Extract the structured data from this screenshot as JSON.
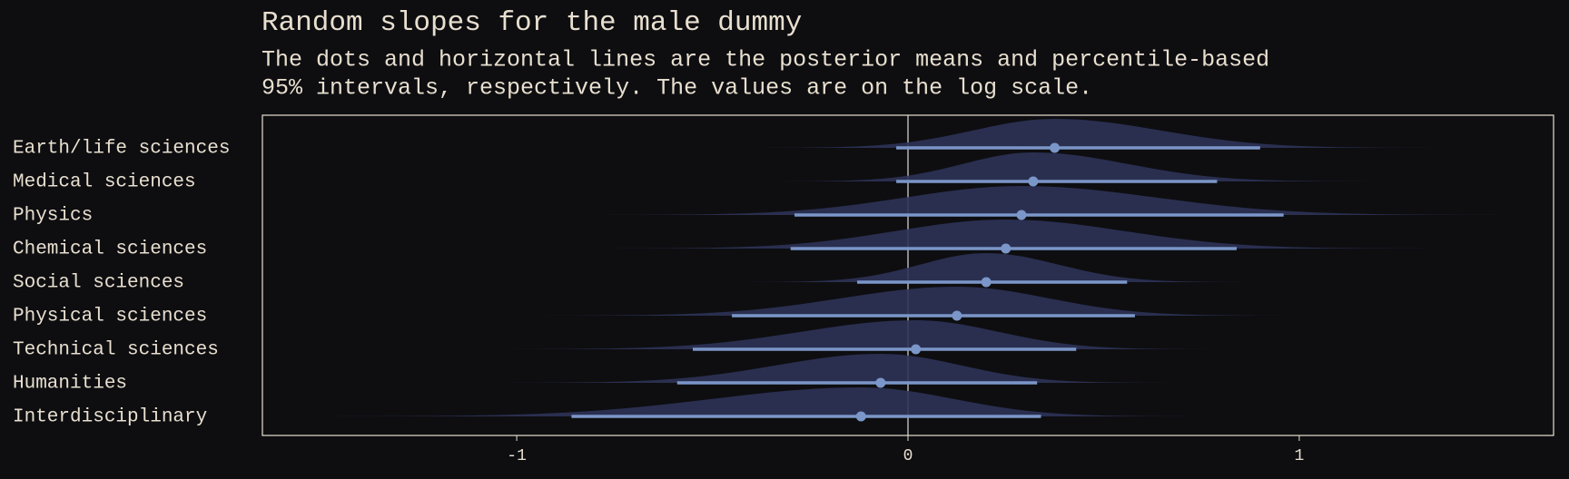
{
  "chart_data": {
    "type": "halfeye",
    "title": "Random slopes for the male dummy",
    "subtitle": [
      "The dots and horizontal lines are the posterior means and percentile-based",
      "95% intervals, respectively. The values are on the log scale."
    ],
    "categories": [
      "Earth/life sciences",
      "Medical sciences",
      "Physics",
      "Chemical sciences",
      "Social sciences",
      "Physical sciences",
      "Technical sciences",
      "Humanities",
      "Interdisciplinary"
    ],
    "means": [
      0.375,
      0.32,
      0.29,
      0.25,
      0.2,
      0.125,
      0.02,
      -0.07,
      -0.12
    ],
    "lower": [
      -0.03,
      -0.03,
      -0.29,
      -0.3,
      -0.13,
      -0.45,
      -0.55,
      -0.59,
      -0.86
    ],
    "upper": [
      0.9,
      0.79,
      0.96,
      0.84,
      0.56,
      0.58,
      0.43,
      0.33,
      0.34
    ],
    "xlim": [
      -1.65,
      1.65
    ],
    "xticks": [
      -1,
      0,
      1
    ],
    "reference_line": 0,
    "color": "#7b96c8",
    "density_color": "#2e3358"
  }
}
